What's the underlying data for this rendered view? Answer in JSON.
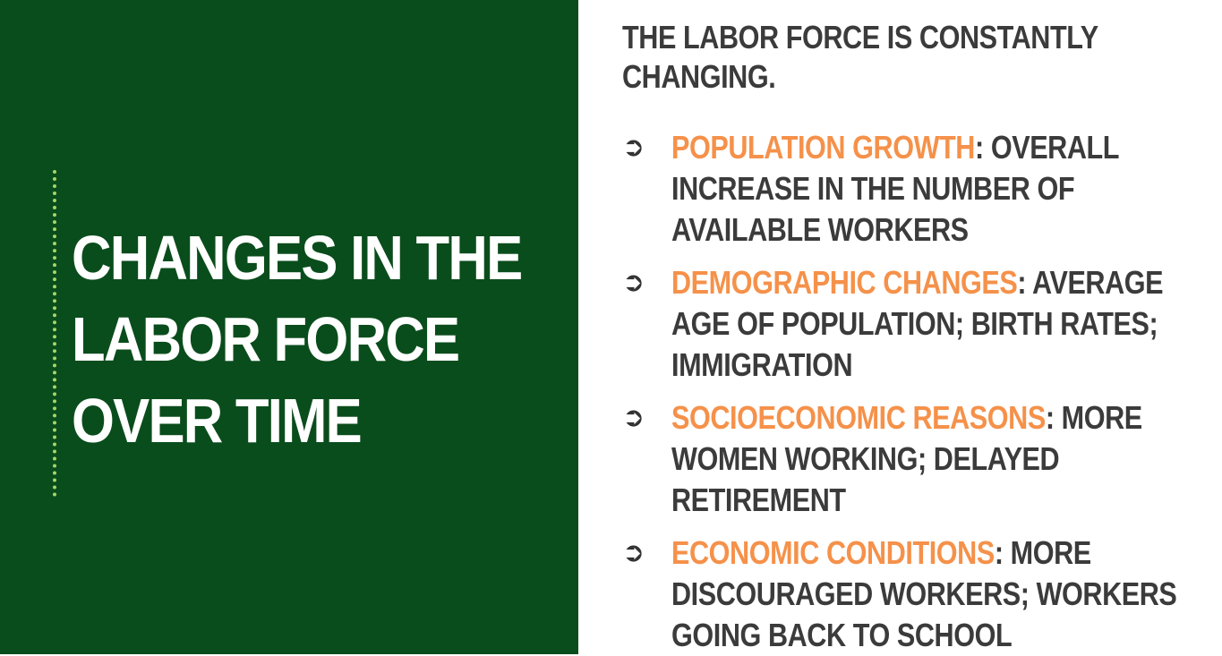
{
  "title_lines": [
    "CHANGES IN THE",
    "LABOR FORCE",
    "OVER TIME"
  ],
  "intro_lines": [
    "THE LABOR FORCE IS CONSTANTLY",
    "CHANGING."
  ],
  "bullets": [
    {
      "term": "POPULATION GROWTH",
      "first_rest": ": OVERALL",
      "more_lines": [
        "INCREASE IN THE NUMBER OF",
        "AVAILABLE WORKERS"
      ]
    },
    {
      "term": "DEMOGRAPHIC CHANGES",
      "first_rest": ": AVERAGE",
      "more_lines": [
        "AGE OF POPULATION; BIRTH RATES;",
        "IMMIGRATION"
      ]
    },
    {
      "term": "SOCIOECONOMIC REASONS",
      "first_rest": ": MORE",
      "more_lines": [
        "WOMEN WORKING; DELAYED",
        "RETIREMENT"
      ]
    },
    {
      "term": "ECONOMIC CONDITIONS",
      "first_rest": ": MORE",
      "more_lines": [
        "DISCOURAGED WORKERS; WORKERS",
        "GOING BACK TO SCHOOL"
      ]
    }
  ],
  "colors": {
    "panel_green": "#0a4d1c",
    "accent_orange": "#f5914a",
    "text_dark": "#3b3b3b",
    "rule_green": "#a6d56a"
  },
  "icons": {
    "bullet": "circled-arrow-icon"
  }
}
